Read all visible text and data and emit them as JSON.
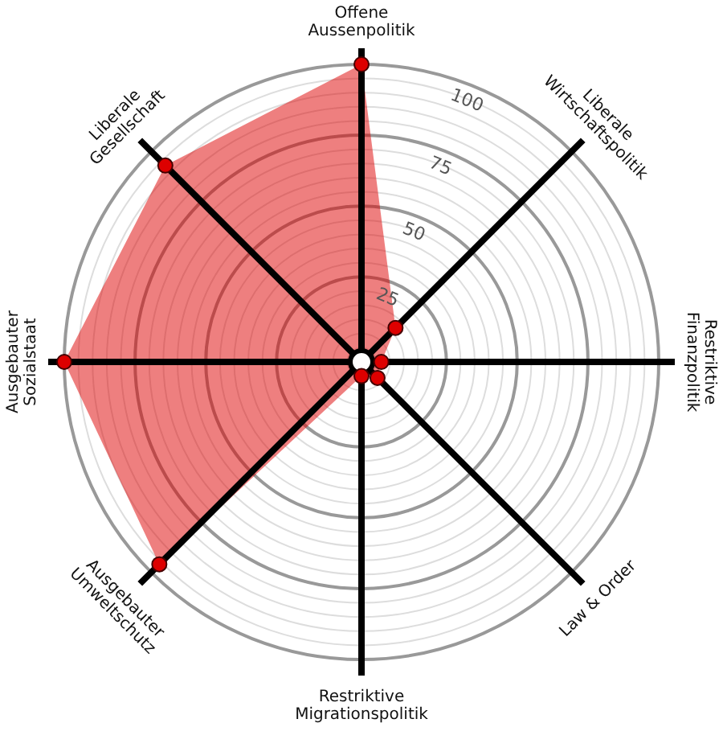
{
  "chart_data": {
    "type": "radar",
    "categories": [
      "Offene\nAussenpolitik",
      "Liberale\nWirtschaftspolitik",
      "Restriktive\nFinanzpolitik",
      "Law & Order",
      "Restriktive\nMigrationspolitik",
      "Ausgebauter\nUmweltschutz",
      "Ausgebauter\nSozialstaat",
      "Liberale\nGesellschaft"
    ],
    "series": [
      {
        "color": "#dd0000",
        "values": [
          100,
          12,
          2,
          3,
          0,
          96,
          100,
          93
        ]
      }
    ],
    "ylim": [
      -5,
      100
    ],
    "yticks": [
      25,
      50,
      75,
      100
    ],
    "grid": true,
    "marker": "circle"
  }
}
